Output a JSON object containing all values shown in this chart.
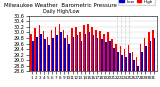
{
  "title": "Milwaukee Weather  Barometric Pressure",
  "subtitle": "Daily High/Low",
  "bar_width": 0.4,
  "background_color": "#ffffff",
  "high_color": "#ff0000",
  "low_color": "#0000cc",
  "legend_high": "High",
  "legend_low": "Low",
  "days": [
    1,
    2,
    3,
    4,
    5,
    6,
    7,
    8,
    9,
    10,
    11,
    12,
    13,
    14,
    15,
    16,
    17,
    18,
    19,
    20,
    21,
    22,
    23,
    24,
    25,
    26,
    27,
    28,
    29,
    30,
    31
  ],
  "highs": [
    29.95,
    30.15,
    30.25,
    30.05,
    29.85,
    30.1,
    30.2,
    30.3,
    30.1,
    29.9,
    30.15,
    30.2,
    30.0,
    30.25,
    30.3,
    30.2,
    30.1,
    30.05,
    29.95,
    30.0,
    29.75,
    29.6,
    29.5,
    29.4,
    29.55,
    29.3,
    29.1,
    29.6,
    29.8,
    30.0,
    30.1
  ],
  "lows": [
    29.7,
    29.85,
    29.95,
    29.75,
    29.55,
    29.8,
    29.9,
    30.0,
    29.8,
    29.6,
    29.85,
    29.9,
    29.7,
    29.95,
    30.0,
    29.9,
    29.8,
    29.75,
    29.65,
    29.7,
    29.45,
    29.3,
    29.2,
    29.1,
    29.25,
    29.0,
    28.8,
    29.3,
    29.5,
    29.7,
    29.8
  ],
  "ylim": [
    28.6,
    30.6
  ],
  "yticks": [
    28.6,
    28.8,
    29.0,
    29.2,
    29.4,
    29.6,
    29.8,
    30.0,
    30.2,
    30.4,
    30.6
  ],
  "dashed_days": [
    22,
    23,
    24,
    25
  ],
  "grid_color": "#cccccc"
}
